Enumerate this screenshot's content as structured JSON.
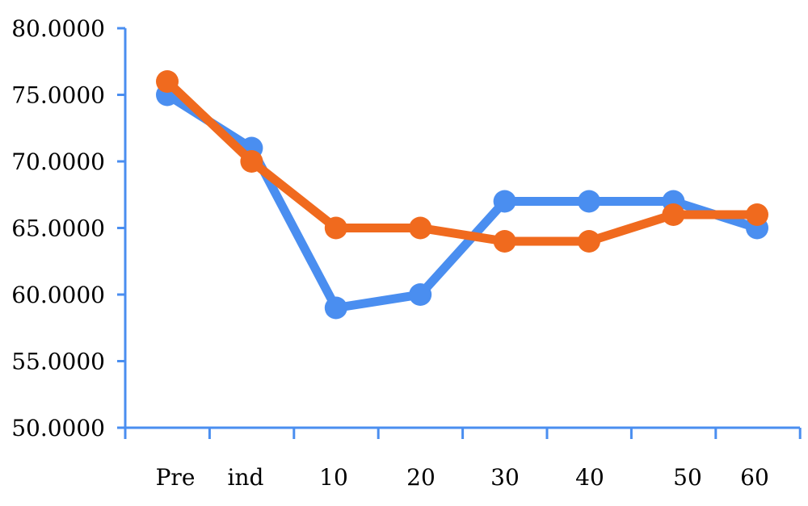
{
  "chart_data": {
    "type": "line",
    "title": "",
    "xlabel": "",
    "ylabel": "",
    "categories": [
      "Pre",
      "ind",
      "10",
      "20",
      "30",
      "40",
      "50",
      "60"
    ],
    "yticks": [
      "50.0000",
      "55.0000",
      "60.0000",
      "65.0000",
      "70.0000",
      "75.0000",
      "80.0000"
    ],
    "ylim": [
      50,
      80
    ],
    "grid": false,
    "legend": "none",
    "series": [
      {
        "color": "#4a8ef0",
        "values": [
          75,
          71,
          59,
          60,
          67,
          67,
          67,
          65
        ]
      },
      {
        "color": "#f06a1e",
        "values": [
          76,
          70,
          65,
          65,
          64,
          64,
          66,
          66
        ]
      }
    ]
  }
}
